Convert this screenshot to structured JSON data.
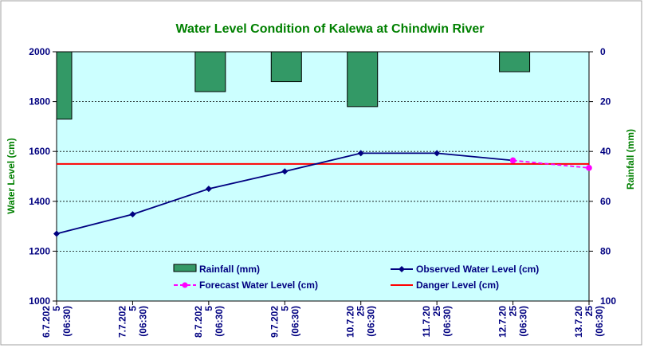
{
  "chart_data": {
    "type": "combo-bar-line",
    "title": "Water Level Condition of Kalewa at Chindwin River",
    "ylabel": "Water Level (cm)",
    "y2label": "Rainfall (mm)",
    "ylim": [
      1000,
      2000
    ],
    "y2lim": [
      0,
      100
    ],
    "y2_inverted": true,
    "yticks": [
      "1000",
      "1200",
      "1400",
      "1600",
      "1800",
      "2000"
    ],
    "y2ticks": [
      "0",
      "20",
      "40",
      "60",
      "80",
      "100"
    ],
    "grid": "horizontal-dashed",
    "plot_background": "#ccffff",
    "categories": [
      [
        "6.7.202",
        "5",
        "(06:30)"
      ],
      [
        "7.7.202",
        "5",
        "(06:30)"
      ],
      [
        "8.7.202",
        "5",
        "(06:30)"
      ],
      [
        "9.7.202",
        "5",
        "(06:30)"
      ],
      [
        "10.7.20",
        "25",
        "(06:30)"
      ],
      [
        "11.7.20",
        "25",
        "(06:30)"
      ],
      [
        "12.7.20",
        "25",
        "(06:30)"
      ],
      [
        "13.7.20",
        "25",
        "(06:30)"
      ]
    ],
    "series": [
      {
        "name": "Rainfall (mm)",
        "kind": "bar",
        "axis": "right",
        "color": "#339966",
        "values": [
          27,
          null,
          16,
          12,
          22,
          null,
          8,
          null
        ]
      },
      {
        "name": "Observed Water Level (cm)",
        "kind": "line",
        "axis": "left",
        "color": "#000080",
        "values": [
          1270,
          1348,
          1450,
          1520,
          1593,
          1593,
          1564,
          null
        ]
      },
      {
        "name": "Forecast Water Level (cm)",
        "kind": "line-dashed",
        "axis": "left",
        "color": "#ff00ff",
        "values": [
          null,
          null,
          null,
          null,
          null,
          null,
          1564,
          1534
        ]
      },
      {
        "name": "Danger Level (cm)",
        "kind": "hline",
        "axis": "left",
        "color": "#ff0000",
        "value": 1550
      }
    ],
    "legend": {
      "placement": "bottom-inside",
      "items": [
        "Rainfall (mm)",
        "Observed Water Level (cm)",
        "Forecast Water Level (cm)",
        "Danger Level (cm)"
      ]
    },
    "colors": {
      "title": "#008000",
      "axis_titles": "#008000",
      "tick_labels": "#000080"
    }
  }
}
